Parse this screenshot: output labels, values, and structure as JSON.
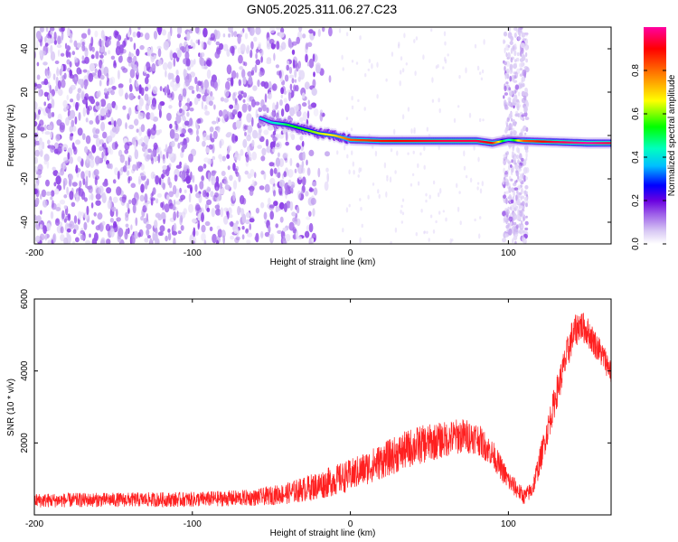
{
  "title": "GN05.2025.311.06.27.C23",
  "chart_data": [
    {
      "type": "heatmap",
      "xlabel": "Height of straight line (km)",
      "ylabel": "Frequency (Hz)",
      "xlim": [
        -200,
        165
      ],
      "ylim": [
        -50,
        50
      ],
      "xticks": [
        -200,
        -100,
        0,
        100
      ],
      "yticks": [
        40,
        20,
        0,
        -20,
        -40
      ],
      "colorbar": {
        "label": "Normalized spectral amplitude",
        "range": [
          0,
          1
        ],
        "ticks": [
          0.0,
          0.2,
          0.4,
          0.6,
          0.8
        ],
        "colormap": [
          "#ffffff",
          "#d8c8f4",
          "#9b5be8",
          "#6a00e0",
          "#0000ff",
          "#00bfff",
          "#00ffbf",
          "#00ff00",
          "#ffff00",
          "#ff8000",
          "#ff0000",
          "#ff00a0"
        ]
      },
      "features": {
        "noise_region_x": [
          -200,
          -40
        ],
        "noise_fade_x": [
          -40,
          -10
        ],
        "vertical_band_x": [
          97,
          112
        ],
        "signal_track": {
          "x": [
            -57,
            -50,
            -40,
            -30,
            -20,
            -10,
            0,
            20,
            40,
            60,
            80,
            90,
            100,
            110,
            130,
            150,
            165
          ],
          "freq": [
            8,
            6,
            5,
            3,
            1,
            0,
            -2,
            -2.5,
            -2.5,
            -2.5,
            -2.5,
            -3.5,
            -2,
            -2.5,
            -3,
            -3.5,
            -3.5
          ],
          "amplitude": [
            0.5,
            0.5,
            0.6,
            0.65,
            0.7,
            0.75,
            0.85,
            0.9,
            0.92,
            0.95,
            0.95,
            0.9,
            0.5,
            0.85,
            0.95,
            1.0,
            0.95
          ]
        }
      }
    },
    {
      "type": "line",
      "xlabel": "Height of straight line (km)",
      "ylabel": "SNR (10 * v/v)",
      "xlim": [
        -200,
        165
      ],
      "ylim": [
        0,
        6000
      ],
      "xticks": [
        -200,
        -100,
        0,
        100
      ],
      "yticks": [
        2000,
        4000,
        6000
      ],
      "color": "#ff2020",
      "envelope": {
        "x": [
          -200,
          -150,
          -100,
          -60,
          -40,
          -20,
          0,
          20,
          40,
          60,
          70,
          80,
          90,
          100,
          110,
          115,
          120,
          130,
          140,
          145,
          150,
          160,
          165
        ],
        "center": [
          400,
          420,
          430,
          480,
          600,
          820,
          1100,
          1500,
          1900,
          2100,
          2200,
          2150,
          1700,
          950,
          500,
          700,
          1500,
          3300,
          4900,
          5300,
          5100,
          4400,
          4000
        ],
        "spread": [
          200,
          200,
          210,
          230,
          300,
          400,
          450,
          500,
          550,
          500,
          500,
          450,
          380,
          300,
          220,
          250,
          380,
          450,
          500,
          450,
          420,
          380,
          360
        ]
      }
    }
  ]
}
